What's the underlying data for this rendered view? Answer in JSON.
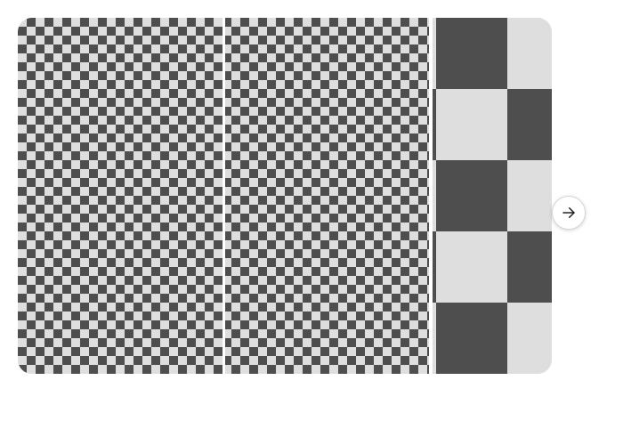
{
  "carousel": {
    "tiles": [
      {
        "name": "image-tile-1",
        "pattern": "checkerboard-small"
      },
      {
        "name": "image-tile-2",
        "pattern": "checkerboard-small"
      },
      {
        "name": "image-tile-3",
        "pattern": "checkerboard-large"
      }
    ],
    "next_button": {
      "icon": "arrow-right-icon"
    }
  },
  "colors": {
    "checker_dark": "#4e4e4e",
    "checker_light": "#dedede",
    "page_background": "#ffffff",
    "button_background": "#ffffff",
    "icon_color": "#222222"
  }
}
